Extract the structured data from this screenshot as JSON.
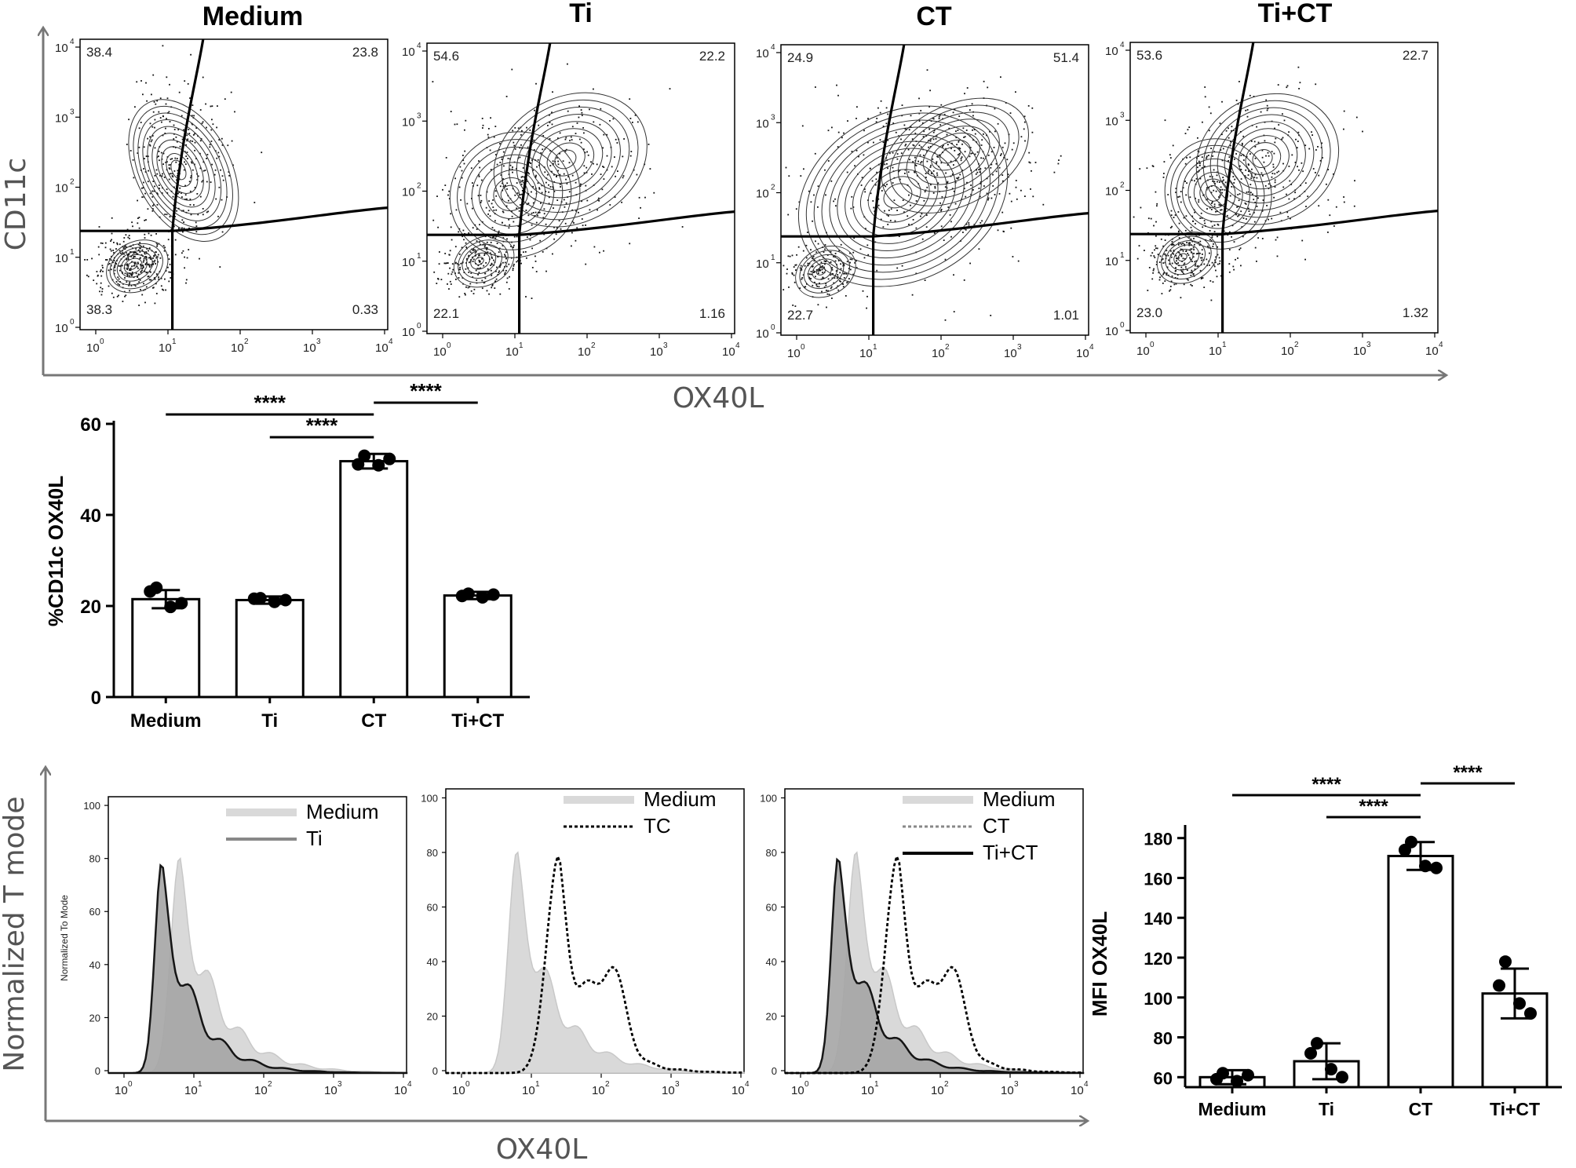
{
  "colors": {
    "ink": "#000000",
    "gray_axis": "#777777",
    "hist_light": "#d9d9d9",
    "hist_dark": "#a6a6a6",
    "hist_line_gray": "#888888"
  },
  "flow": {
    "y_label": "CD11c",
    "x_label": "OX40L",
    "decades": [
      "10",
      "10",
      "10",
      "10",
      "10"
    ],
    "exponents": [
      "0",
      "1",
      "2",
      "3",
      "4"
    ],
    "panels": [
      {
        "title": "Medium",
        "q_ul": "38.4",
        "q_ur": "23.8",
        "q_ll": "38.3",
        "q_lr": "0.33"
      },
      {
        "title": "Ti",
        "q_ul": "54.6",
        "q_ur": "22.2",
        "q_ll": "22.1",
        "q_lr": "1.16"
      },
      {
        "title": "CT",
        "q_ul": "24.9",
        "q_ur": "51.4",
        "q_ll": "22.7",
        "q_lr": "1.01"
      },
      {
        "title": "Ti+CT",
        "q_ul": "53.6",
        "q_ur": "22.7",
        "q_ll": "23.0",
        "q_lr": "1.32"
      }
    ]
  },
  "histograms": {
    "y_label": "Normalized T mode",
    "x_label": "OX40L",
    "inner_y_label": "Normalized To Mode",
    "y_ticks": [
      "0",
      "20",
      "40",
      "60",
      "80",
      "100"
    ],
    "panels": [
      {
        "legend": [
          "Medium",
          "Ti"
        ]
      },
      {
        "legend": [
          "Medium",
          "TC"
        ]
      },
      {
        "legend": [
          "Medium",
          "CT",
          "Ti+CT"
        ]
      }
    ]
  },
  "chart_data": [
    {
      "type": "bar",
      "id": "percent-cd11c-ox40l",
      "ylabel": "%CD11c OX40L",
      "categories": [
        "Medium",
        "Ti",
        "CT",
        "Ti+CT"
      ],
      "values": [
        21.5,
        21.3,
        51.8,
        22.3
      ],
      "errors": [
        2.0,
        0.8,
        1.6,
        0.8
      ],
      "points": [
        [
          24,
          23.2,
          19.8,
          20.6
        ],
        [
          21.7,
          21.6,
          20.9,
          21.3
        ],
        [
          53.0,
          51.1,
          50.9,
          52.3
        ],
        [
          22.7,
          22.2,
          21.9,
          22.5
        ]
      ],
      "ylim": [
        0,
        60
      ],
      "yticks": [
        "0",
        "20",
        "40",
        "60"
      ],
      "significance": [
        {
          "from": "Medium",
          "to": "CT",
          "label": "****"
        },
        {
          "from": "Ti",
          "to": "CT",
          "label": "****"
        },
        {
          "from": "CT",
          "to": "Ti+CT",
          "label": "****"
        }
      ]
    },
    {
      "type": "bar",
      "id": "mfi-ox40l",
      "ylabel": "MFI OX40L",
      "categories": [
        "Medium",
        "Ti",
        "CT",
        "Ti+CT"
      ],
      "values": [
        60,
        68,
        171,
        102
      ],
      "errors": [
        3.5,
        9,
        7,
        12.5
      ],
      "points": [
        [
          62,
          59,
          58,
          61
        ],
        [
          77,
          72,
          64,
          60
        ],
        [
          178,
          174,
          166,
          165
        ],
        [
          118,
          106,
          97,
          92
        ]
      ],
      "ylim": [
        55,
        185
      ],
      "yticks": [
        "60",
        "80",
        "100",
        "120",
        "140",
        "160",
        "180"
      ],
      "significance": [
        {
          "from": "Medium",
          "to": "CT",
          "label": "****"
        },
        {
          "from": "Ti",
          "to": "CT",
          "label": "****"
        },
        {
          "from": "CT",
          "to": "Ti+CT",
          "label": "****"
        }
      ]
    }
  ]
}
